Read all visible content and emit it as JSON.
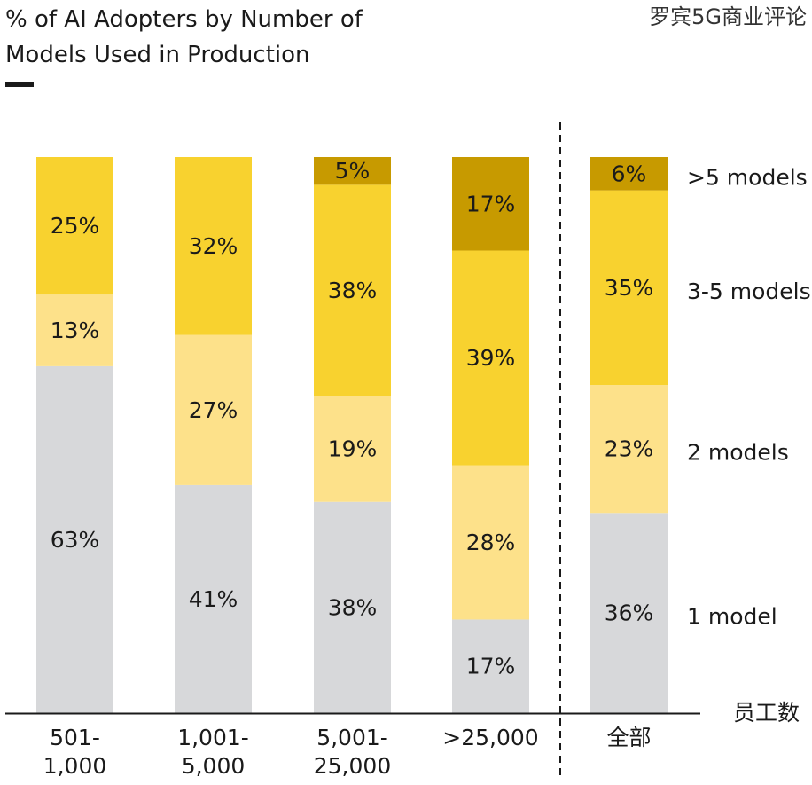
{
  "watermark": "罗宾5G商业评论",
  "chart_data": {
    "type": "bar",
    "stacked": true,
    "title_lines": [
      "% of AI Adopters by Number of",
      "Models Used in Production"
    ],
    "title": "% of AI Adopters by Number of Models Used in Production",
    "xlabel": "员工数",
    "ylabel": "",
    "ylim": [
      0,
      100
    ],
    "grid": false,
    "legend_position": "right",
    "categories": [
      {
        "lines": [
          "501-",
          "1,000"
        ]
      },
      {
        "lines": [
          "1,001-",
          "5,000"
        ]
      },
      {
        "lines": [
          "5,001-",
          "25,000"
        ]
      },
      {
        "lines": [
          ">25,000"
        ]
      },
      {
        "lines": [
          "全部"
        ]
      }
    ],
    "series": [
      {
        "name": "1 model",
        "color": "#d7d8da",
        "values": [
          63,
          41,
          38,
          17,
          36
        ],
        "labels": [
          "63%",
          "41%",
          "38%",
          "17%",
          "36%"
        ]
      },
      {
        "name": "2 models",
        "color": "#fde18a",
        "values": [
          13,
          27,
          19,
          28,
          23
        ],
        "labels": [
          "13%",
          "27%",
          "19%",
          "28%",
          "23%"
        ]
      },
      {
        "name": "3-5 models",
        "color": "#f8d22f",
        "values": [
          25,
          32,
          38,
          39,
          35
        ],
        "labels": [
          "25%",
          "32%",
          "38%",
          "39%",
          "35%"
        ]
      },
      {
        "name": ">5 models",
        "color": "#c79a00",
        "values": [
          0,
          0,
          5,
          17,
          6
        ],
        "labels": [
          "",
          "",
          "5%",
          "17%",
          "6%"
        ]
      }
    ]
  }
}
